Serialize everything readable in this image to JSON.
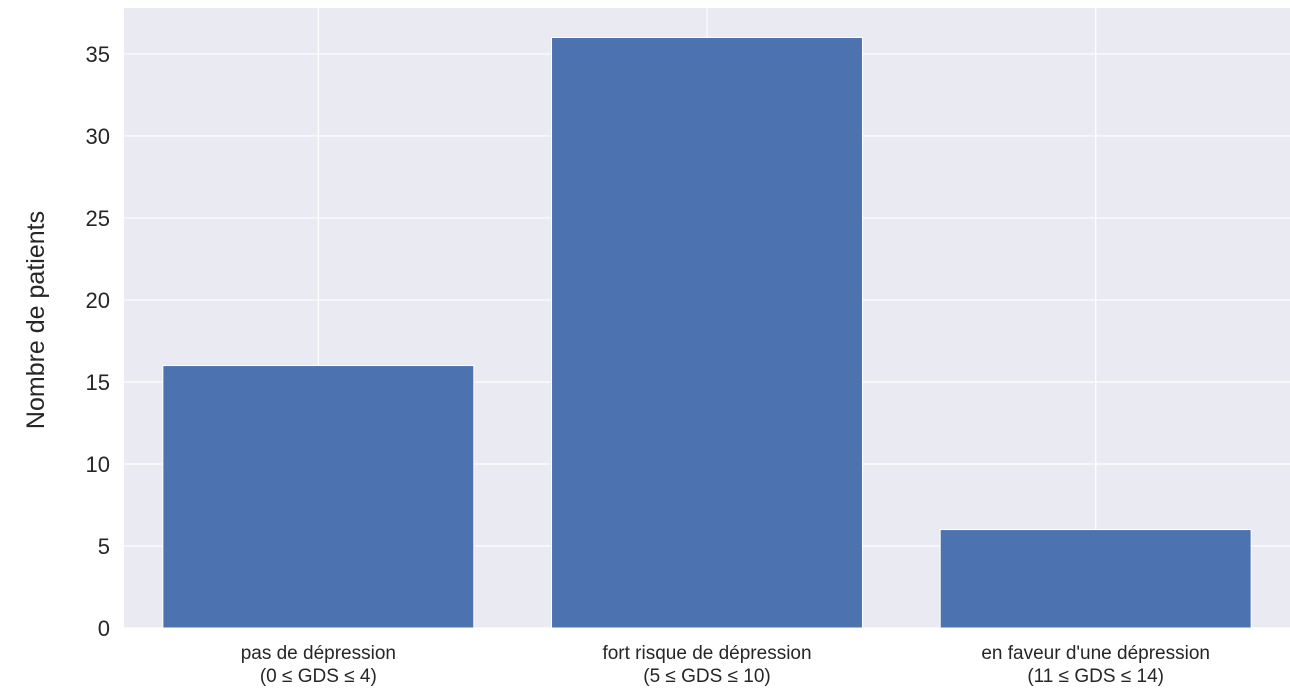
{
  "chart_data": {
    "type": "bar",
    "title": "",
    "xlabel": "",
    "ylabel": "Nombre de patients",
    "categories": [
      [
        "pas de dépression",
        "(0 ≤ GDS ≤ 4)"
      ],
      [
        "fort risque de dépression",
        "(5 ≤ GDS ≤ 10)"
      ],
      [
        "en faveur d'une dépression",
        "(11 ≤ GDS ≤ 14)"
      ]
    ],
    "values": [
      16,
      36,
      6
    ],
    "ylim": [
      0,
      37.8
    ],
    "yticks": [
      0,
      5,
      10,
      15,
      20,
      25,
      30,
      35
    ],
    "grid": true,
    "legend": "none",
    "colors": {
      "bar": "#4c72b0",
      "background": "#eaeaf2",
      "grid": "#ffffff"
    }
  }
}
